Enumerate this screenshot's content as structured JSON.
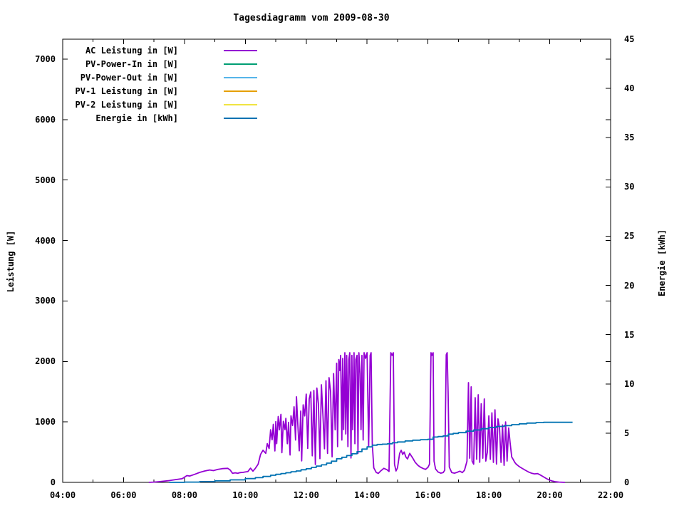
{
  "window": {
    "background": "#ffffff",
    "foreground": "#000000"
  },
  "chart": {
    "title": "Tagesdiagramm vom 2009-08-30"
  },
  "axes": {
    "x": {
      "min_hour": 4,
      "max_hour": 22,
      "minor_step_hours": 1,
      "major_step_hours": 2,
      "major_ticks": [
        {
          "hour": 4,
          "label": "04:00"
        },
        {
          "hour": 6,
          "label": "06:00"
        },
        {
          "hour": 8,
          "label": "08:00"
        },
        {
          "hour": 10,
          "label": "10:00"
        },
        {
          "hour": 12,
          "label": "12:00"
        },
        {
          "hour": 14,
          "label": "14:00"
        },
        {
          "hour": 16,
          "label": "16:00"
        },
        {
          "hour": 18,
          "label": "18:00"
        },
        {
          "hour": 20,
          "label": "20:00"
        },
        {
          "hour": 22,
          "label": "22:00"
        }
      ]
    },
    "y_left": {
      "label": "Leistung [W]",
      "min": 0,
      "max": 7330,
      "tick_step": 1000,
      "ticks": [
        0,
        1000,
        2000,
        3000,
        4000,
        5000,
        6000,
        7000
      ],
      "tick_labels": [
        "0",
        "1000",
        "2000",
        "3000",
        "4000",
        "5000",
        "6000",
        "7000"
      ]
    },
    "y_right": {
      "label": "Energie [kWh]",
      "min": 0,
      "max": 45,
      "tick_step": 5,
      "ticks": [
        0,
        5,
        10,
        15,
        20,
        25,
        30,
        35,
        40,
        45
      ],
      "tick_labels": [
        "0",
        "5",
        "10",
        "15",
        "20",
        "25",
        "30",
        "35",
        "40",
        "45"
      ]
    }
  },
  "chart_data": {
    "type": "line",
    "title": "Tagesdiagramm vom 2009-08-30",
    "x_unit": "time of day (decimal hours)",
    "x_range_hours": [
      4,
      22
    ],
    "y_left_label": "Leistung [W]",
    "y_right_label": "Energie [kWh]",
    "grid": false,
    "legend_position": "top-left-inside",
    "series": [
      {
        "name": "AC Leistung in [W]",
        "color": "#9400d3",
        "axis": "left",
        "style": "lines",
        "peak_w": 2145,
        "points": [
          [
            6.83,
            0
          ],
          [
            7.0,
            5
          ],
          [
            7.17,
            12
          ],
          [
            7.33,
            20
          ],
          [
            7.5,
            30
          ],
          [
            7.67,
            42
          ],
          [
            7.92,
            60
          ],
          [
            8.0,
            85
          ],
          [
            8.08,
            112
          ],
          [
            8.17,
            105
          ],
          [
            8.33,
            132
          ],
          [
            8.5,
            165
          ],
          [
            8.67,
            188
          ],
          [
            8.83,
            205
          ],
          [
            8.95,
            195
          ],
          [
            9.1,
            215
          ],
          [
            9.25,
            228
          ],
          [
            9.42,
            232
          ],
          [
            9.5,
            205
          ],
          [
            9.58,
            150
          ],
          [
            9.67,
            158
          ],
          [
            9.75,
            150
          ],
          [
            9.83,
            162
          ],
          [
            9.92,
            165
          ],
          [
            10.0,
            172
          ],
          [
            10.08,
            178
          ],
          [
            10.17,
            235
          ],
          [
            10.25,
            185
          ],
          [
            10.33,
            232
          ],
          [
            10.42,
            300
          ],
          [
            10.5,
            462
          ],
          [
            10.58,
            532
          ],
          [
            10.67,
            480
          ],
          [
            10.72,
            640
          ],
          [
            10.78,
            560
          ],
          [
            10.83,
            870
          ],
          [
            10.88,
            705
          ],
          [
            10.92,
            960
          ],
          [
            10.97,
            520
          ],
          [
            11.0,
            1005
          ],
          [
            11.03,
            640
          ],
          [
            11.08,
            1090
          ],
          [
            11.12,
            870
          ],
          [
            11.17,
            1125
          ],
          [
            11.2,
            492
          ],
          [
            11.25,
            1010
          ],
          [
            11.3,
            872
          ],
          [
            11.33,
            1060
          ],
          [
            11.38,
            640
          ],
          [
            11.42,
            992
          ],
          [
            11.47,
            452
          ],
          [
            11.5,
            1100
          ],
          [
            11.55,
            940
          ],
          [
            11.6,
            1250
          ],
          [
            11.65,
            700
          ],
          [
            11.68,
            1415
          ],
          [
            11.72,
            1000
          ],
          [
            11.77,
            522
          ],
          [
            11.82,
            1180
          ],
          [
            11.85,
            355
          ],
          [
            11.9,
            1282
          ],
          [
            11.95,
            1100
          ],
          [
            12.0,
            1460
          ],
          [
            12.05,
            562
          ],
          [
            12.1,
            1380
          ],
          [
            12.15,
            1495
          ],
          [
            12.2,
            440
          ],
          [
            12.25,
            1520
          ],
          [
            12.3,
            295
          ],
          [
            12.35,
            1560
          ],
          [
            12.4,
            1300
          ],
          [
            12.45,
            392
          ],
          [
            12.5,
            1615
          ],
          [
            12.55,
            1100
          ],
          [
            12.6,
            555
          ],
          [
            12.65,
            1680
          ],
          [
            12.7,
            480
          ],
          [
            12.75,
            1732
          ],
          [
            12.8,
            1500
          ],
          [
            12.85,
            422
          ],
          [
            12.9,
            1800
          ],
          [
            12.95,
            870
          ],
          [
            13.0,
            1970
          ],
          [
            13.03,
            590
          ],
          [
            13.07,
            2030
          ],
          [
            13.1,
            1850
          ],
          [
            13.13,
            2100
          ],
          [
            13.17,
            700
          ],
          [
            13.2,
            2050
          ],
          [
            13.23,
            872
          ],
          [
            13.27,
            2145
          ],
          [
            13.3,
            800
          ],
          [
            13.33,
            2100
          ],
          [
            13.37,
            590
          ],
          [
            13.4,
            2030
          ],
          [
            13.43,
            2145
          ],
          [
            13.47,
            402
          ],
          [
            13.5,
            2100
          ],
          [
            13.53,
            870
          ],
          [
            13.57,
            2145
          ],
          [
            13.6,
            640
          ],
          [
            13.63,
            2030
          ],
          [
            13.67,
            2100
          ],
          [
            13.7,
            480
          ],
          [
            13.73,
            2145
          ],
          [
            13.77,
            1800
          ],
          [
            13.8,
            872
          ],
          [
            13.83,
            2100
          ],
          [
            13.87,
            700
          ],
          [
            13.9,
            2145
          ],
          [
            13.95,
            2050
          ],
          [
            14.0,
            2145
          ],
          [
            14.05,
            590
          ],
          [
            14.1,
            2100
          ],
          [
            14.13,
            2145
          ],
          [
            14.17,
            640
          ],
          [
            14.22,
            240
          ],
          [
            14.3,
            165
          ],
          [
            14.37,
            148
          ],
          [
            14.45,
            190
          ],
          [
            14.55,
            232
          ],
          [
            14.65,
            210
          ],
          [
            14.72,
            180
          ],
          [
            14.78,
            2145
          ],
          [
            14.82,
            2100
          ],
          [
            14.86,
            2145
          ],
          [
            14.9,
            300
          ],
          [
            14.95,
            188
          ],
          [
            15.0,
            240
          ],
          [
            15.07,
            480
          ],
          [
            15.12,
            530
          ],
          [
            15.17,
            462
          ],
          [
            15.22,
            502
          ],
          [
            15.27,
            422
          ],
          [
            15.33,
            388
          ],
          [
            15.4,
            480
          ],
          [
            15.45,
            440
          ],
          [
            15.5,
            402
          ],
          [
            15.58,
            332
          ],
          [
            15.67,
            282
          ],
          [
            15.75,
            252
          ],
          [
            15.83,
            232
          ],
          [
            15.92,
            215
          ],
          [
            16.0,
            250
          ],
          [
            16.05,
            300
          ],
          [
            16.1,
            2145
          ],
          [
            16.13,
            2100
          ],
          [
            16.17,
            2145
          ],
          [
            16.2,
            352
          ],
          [
            16.25,
            222
          ],
          [
            16.33,
            172
          ],
          [
            16.42,
            152
          ],
          [
            16.5,
            162
          ],
          [
            16.55,
            200
          ],
          [
            16.6,
            2110
          ],
          [
            16.63,
            2145
          ],
          [
            16.66,
            1500
          ],
          [
            16.7,
            252
          ],
          [
            16.78,
            162
          ],
          [
            16.87,
            152
          ],
          [
            16.95,
            165
          ],
          [
            17.05,
            185
          ],
          [
            17.13,
            162
          ],
          [
            17.2,
            200
          ],
          [
            17.28,
            350
          ],
          [
            17.33,
            1650
          ],
          [
            17.37,
            400
          ],
          [
            17.42,
            1580
          ],
          [
            17.45,
            352
          ],
          [
            17.5,
            300
          ],
          [
            17.55,
            1400
          ],
          [
            17.6,
            382
          ],
          [
            17.65,
            1450
          ],
          [
            17.7,
            332
          ],
          [
            17.75,
            1300
          ],
          [
            17.8,
            400
          ],
          [
            17.85,
            1380
          ],
          [
            17.9,
            352
          ],
          [
            17.95,
            500
          ],
          [
            18.0,
            1100
          ],
          [
            18.05,
            382
          ],
          [
            18.1,
            1150
          ],
          [
            18.15,
            330
          ],
          [
            18.2,
            1200
          ],
          [
            18.25,
            302
          ],
          [
            18.3,
            1050
          ],
          [
            18.35,
            900
          ],
          [
            18.4,
            330
          ],
          [
            18.45,
            950
          ],
          [
            18.5,
            282
          ],
          [
            18.55,
            1000
          ],
          [
            18.6,
            352
          ],
          [
            18.65,
            900
          ],
          [
            18.7,
            650
          ],
          [
            18.75,
            420
          ],
          [
            18.8,
            380
          ],
          [
            18.85,
            332
          ],
          [
            18.9,
            300
          ],
          [
            18.95,
            280
          ],
          [
            19.0,
            260
          ],
          [
            19.1,
            230
          ],
          [
            19.2,
            200
          ],
          [
            19.3,
            172
          ],
          [
            19.4,
            152
          ],
          [
            19.5,
            140
          ],
          [
            19.6,
            145
          ],
          [
            19.7,
            120
          ],
          [
            19.8,
            90
          ],
          [
            19.9,
            60
          ],
          [
            20.0,
            35
          ],
          [
            20.1,
            20
          ],
          [
            20.2,
            10
          ],
          [
            20.3,
            5
          ],
          [
            20.5,
            0
          ]
        ]
      },
      {
        "name": "PV-Power-In in [W]",
        "color": "#009e73",
        "axis": "left",
        "style": "lines",
        "points": []
      },
      {
        "name": "PV-Power-Out in [W]",
        "color": "#56b4e9",
        "axis": "left",
        "style": "lines",
        "points": []
      },
      {
        "name": "PV-1 Leistung in [W]",
        "color": "#e69f00",
        "axis": "left",
        "style": "lines",
        "points": []
      },
      {
        "name": "PV-2 Leistung in [W]",
        "color": "#f0e442",
        "axis": "left",
        "style": "lines",
        "points": []
      },
      {
        "name": "Energie in [kWh]",
        "color": "#0072b2",
        "axis": "right",
        "style": "steps",
        "final_kwh": 6.1,
        "points": [
          [
            7.5,
            0
          ],
          [
            8.0,
            0.03
          ],
          [
            8.5,
            0.08
          ],
          [
            9.0,
            0.15
          ],
          [
            9.5,
            0.25
          ],
          [
            10.0,
            0.38
          ],
          [
            10.33,
            0.48
          ],
          [
            10.58,
            0.6
          ],
          [
            10.83,
            0.72
          ],
          [
            11.0,
            0.82
          ],
          [
            11.17,
            0.9
          ],
          [
            11.33,
            0.98
          ],
          [
            11.5,
            1.08
          ],
          [
            11.67,
            1.16
          ],
          [
            11.83,
            1.28
          ],
          [
            12.0,
            1.38
          ],
          [
            12.17,
            1.52
          ],
          [
            12.33,
            1.65
          ],
          [
            12.5,
            1.78
          ],
          [
            12.67,
            1.95
          ],
          [
            12.83,
            2.15
          ],
          [
            13.0,
            2.4
          ],
          [
            13.17,
            2.55
          ],
          [
            13.33,
            2.72
          ],
          [
            13.5,
            2.9
          ],
          [
            13.67,
            3.12
          ],
          [
            13.83,
            3.38
          ],
          [
            14.0,
            3.6
          ],
          [
            14.17,
            3.78
          ],
          [
            14.33,
            3.85
          ],
          [
            14.5,
            3.88
          ],
          [
            14.67,
            3.92
          ],
          [
            14.83,
            4.02
          ],
          [
            15.0,
            4.1
          ],
          [
            15.25,
            4.2
          ],
          [
            15.5,
            4.28
          ],
          [
            15.75,
            4.33
          ],
          [
            16.0,
            4.38
          ],
          [
            16.17,
            4.6
          ],
          [
            16.33,
            4.65
          ],
          [
            16.5,
            4.72
          ],
          [
            16.67,
            4.9
          ],
          [
            16.83,
            4.97
          ],
          [
            17.0,
            5.05
          ],
          [
            17.25,
            5.2
          ],
          [
            17.5,
            5.32
          ],
          [
            17.75,
            5.45
          ],
          [
            18.0,
            5.58
          ],
          [
            18.25,
            5.68
          ],
          [
            18.5,
            5.76
          ],
          [
            18.75,
            5.86
          ],
          [
            19.0,
            5.95
          ],
          [
            19.25,
            6.02
          ],
          [
            19.55,
            6.07
          ],
          [
            19.8,
            6.1
          ],
          [
            20.75,
            6.1
          ]
        ]
      }
    ]
  }
}
